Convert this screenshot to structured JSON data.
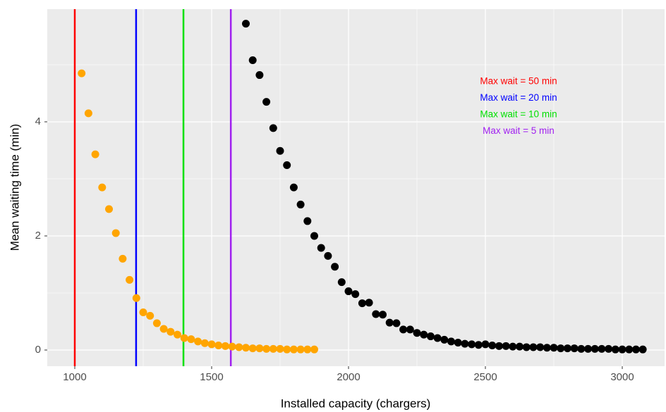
{
  "chart_data": {
    "type": "scatter",
    "x_label": "Installed capacity (chargers)",
    "y_label": "Mean waiting time (min)",
    "xlim": [
      899.5,
      3154.6
    ],
    "ylim": [
      -0.284,
      5.975
    ],
    "xticks": [
      1000,
      1500,
      2000,
      2500,
      3000
    ],
    "yticks": [
      0,
      2,
      4
    ],
    "grid": true,
    "series": [
      {
        "color": "#ffa500",
        "x": [
          1025,
          1050,
          1075,
          1100,
          1125,
          1150,
          1175,
          1200,
          1225,
          1250,
          1275,
          1300,
          1325,
          1350,
          1375,
          1400,
          1425,
          1450,
          1475,
          1500,
          1525,
          1550,
          1575,
          1600,
          1625,
          1650,
          1675,
          1700,
          1725,
          1750,
          1775,
          1800,
          1825,
          1850,
          1875
        ],
        "values": [
          4.85,
          4.15,
          3.43,
          2.85,
          2.47,
          2.05,
          1.6,
          1.23,
          0.91,
          0.66,
          0.6,
          0.47,
          0.37,
          0.32,
          0.27,
          0.21,
          0.19,
          0.15,
          0.12,
          0.1,
          0.08,
          0.07,
          0.06,
          0.05,
          0.04,
          0.03,
          0.03,
          0.02,
          0.02,
          0.02,
          0.01,
          0.01,
          0.01,
          0.01,
          0.01
        ]
      },
      {
        "color": "#000000",
        "x": [
          1625,
          1650,
          1675,
          1700,
          1725,
          1750,
          1775,
          1800,
          1825,
          1850,
          1875,
          1900,
          1925,
          1950,
          1975,
          2000,
          2025,
          2050,
          2075,
          2100,
          2125,
          2150,
          2175,
          2200,
          2225,
          2250,
          2275,
          2300,
          2325,
          2350,
          2375,
          2400,
          2425,
          2450,
          2475,
          2500,
          2525,
          2550,
          2575,
          2600,
          2625,
          2650,
          2675,
          2700,
          2725,
          2750,
          2775,
          2800,
          2825,
          2850,
          2875,
          2900,
          2925,
          2950,
          2975,
          3000,
          3025,
          3050,
          3075
        ],
        "values": [
          5.72,
          5.08,
          4.82,
          4.35,
          3.89,
          3.49,
          3.24,
          2.85,
          2.55,
          2.26,
          2.0,
          1.79,
          1.65,
          1.46,
          1.19,
          1.03,
          0.98,
          0.82,
          0.83,
          0.63,
          0.62,
          0.48,
          0.47,
          0.36,
          0.36,
          0.3,
          0.27,
          0.24,
          0.21,
          0.18,
          0.15,
          0.13,
          0.11,
          0.1,
          0.09,
          0.1,
          0.08,
          0.07,
          0.07,
          0.06,
          0.06,
          0.05,
          0.05,
          0.05,
          0.04,
          0.04,
          0.03,
          0.03,
          0.03,
          0.02,
          0.02,
          0.02,
          0.02,
          0.02,
          0.01,
          0.01,
          0.01,
          0.01,
          0.01
        ]
      }
    ],
    "vlines": [
      {
        "value": 1000,
        "color": "#ff0000",
        "label": "Max wait = 50 min"
      },
      {
        "value": 1224,
        "color": "#0000ff",
        "label": "Max wait = 20 min"
      },
      {
        "value": 1397,
        "color": "#00e000",
        "label": "Max wait = 10 min"
      },
      {
        "value": 1570,
        "color": "#a020f0",
        "label": "Max wait = 5 min"
      }
    ]
  }
}
